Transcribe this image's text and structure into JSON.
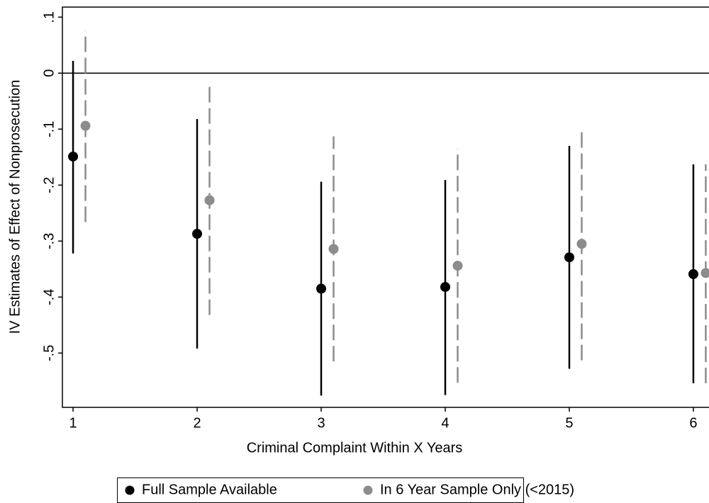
{
  "chart_data": {
    "type": "errorbar",
    "x_label": "Criminal Complaint Within X Years",
    "y_label": "IV Estimates of Effect of Nonprosecution",
    "xlim": [
      0.914,
      6.126
    ],
    "ylim": [
      -0.597,
      0.118
    ],
    "xticks": [
      1,
      2,
      3,
      4,
      5,
      6
    ],
    "yticks": [
      {
        "value": 0.1,
        "label": ".1"
      },
      0,
      {
        "value": -0.1,
        "label": "-.1"
      },
      {
        "value": -0.2,
        "label": "-.2"
      },
      {
        "value": -0.3,
        "label": "-.3"
      },
      {
        "value": -0.4,
        "label": "-.4"
      },
      {
        "value": -0.5,
        "label": "-.5"
      }
    ],
    "reference_line": 0,
    "series": [
      {
        "name": "Full Sample Available",
        "color": "#000000",
        "dashed": false,
        "x": [
          1,
          2,
          3,
          4,
          5,
          6
        ],
        "values": [
          -0.149,
          -0.287,
          -0.385,
          -0.382,
          -0.329,
          -0.359
        ],
        "lower": [
          -0.322,
          -0.492,
          -0.576,
          -0.575,
          -0.528,
          -0.554
        ],
        "upper": [
          0.022,
          -0.082,
          -0.194,
          -0.191,
          -0.13,
          -0.163
        ]
      },
      {
        "name": "In 6 Year Sample Only (<2015)",
        "color": "#8c8c8c",
        "dashed": true,
        "x": [
          1.1,
          2.1,
          3.1,
          4.1,
          5.1,
          6.1
        ],
        "values": [
          -0.094,
          -0.227,
          -0.314,
          -0.344,
          -0.305,
          -0.357
        ],
        "lower": [
          -0.266,
          -0.432,
          -0.515,
          -0.553,
          -0.513,
          -0.554
        ],
        "upper": [
          0.076,
          -0.022,
          -0.113,
          -0.135,
          -0.1,
          -0.163
        ]
      }
    ]
  }
}
